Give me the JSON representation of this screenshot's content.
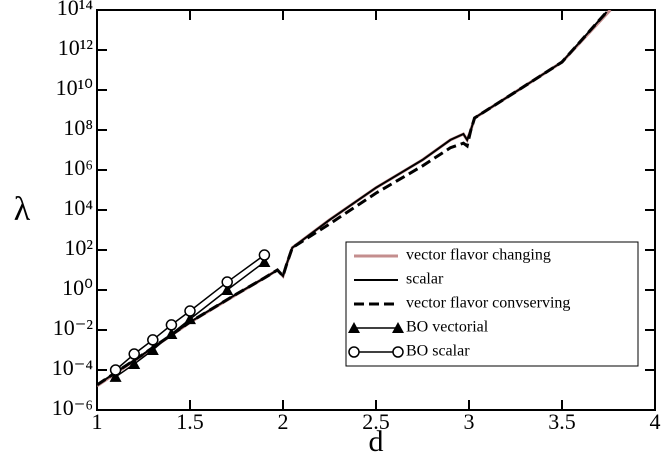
{
  "chart_data": {
    "type": "line",
    "x_label": "d",
    "y_label": "λ",
    "xlim": [
      1,
      4
    ],
    "xticks": [
      1,
      1.5,
      2,
      2.5,
      3,
      3.5,
      4
    ],
    "ylim": [
      1e-06,
      100000000000000.0
    ],
    "log_y": true,
    "yticks": [
      {
        "value": 1e-06,
        "label": "10⁻⁶"
      },
      {
        "value": 0.0001,
        "label": "10⁻⁴"
      },
      {
        "value": 0.01,
        "label": "10⁻²"
      },
      {
        "value": 1,
        "label": "10⁰"
      },
      {
        "value": 100,
        "label": "10²"
      },
      {
        "value": 10000,
        "label": "10⁴"
      },
      {
        "value": 1000000.0,
        "label": "10⁶"
      },
      {
        "value": 100000000.0,
        "label": "10⁸"
      },
      {
        "value": 10000000000.0,
        "label": "10¹⁰"
      },
      {
        "value": 1000000000000.0,
        "label": "10¹²"
      },
      {
        "value": 100000000000000.0,
        "label": "10¹⁴"
      }
    ],
    "legend": "lower right",
    "series": [
      {
        "name": "vector flavor changing",
        "color": "#c48e8e",
        "width": 3,
        "dash": false,
        "marker": null,
        "x": [
          1,
          1.25,
          1.5,
          1.75,
          1.9,
          1.97,
          2.0,
          2.02,
          2.05,
          2.25,
          2.5,
          2.75,
          2.9,
          2.97,
          2.99,
          3.01,
          3.03,
          3.25,
          3.5,
          3.76
        ],
        "values": [
          1.6e-05,
          0.0006,
          0.024,
          0.6,
          4,
          10,
          5,
          20,
          130,
          3200,
          130000.0,
          3200000.0,
          32000000.0,
          63000000.0,
          32000000.0,
          100000000.0,
          400000000.0,
          8000000000.0,
          250000000000.0,
          100000000000000.0
        ]
      },
      {
        "name": "scalar",
        "color": "#000000",
        "width": 2,
        "dash": false,
        "marker": null,
        "x": [
          1,
          1.25,
          1.5,
          1.75,
          1.9,
          1.97,
          2.0,
          2.02,
          2.05,
          2.25,
          2.5,
          2.75,
          2.9,
          2.97,
          2.99,
          3.01,
          3.03,
          3.25,
          3.5,
          3.74
        ],
        "values": [
          1.8e-05,
          0.00063,
          0.025,
          0.63,
          4,
          10,
          5,
          20,
          130,
          3200,
          130000.0,
          3200000.0,
          32000000.0,
          63000000.0,
          32000000.0,
          100000000.0,
          400000000.0,
          8000000000.0,
          250000000000.0,
          80000000000000.0
        ]
      },
      {
        "name": "vector flavor convserving",
        "color": "#000000",
        "width": 3,
        "dash": true,
        "marker": null,
        "x": [
          1,
          1.25,
          1.5,
          1.75,
          1.9,
          1.97,
          2.0,
          2.02,
          2.05,
          2.25,
          2.5,
          2.75,
          2.9,
          2.97,
          2.99,
          3.01,
          3.03,
          3.25,
          3.5,
          3.74
        ],
        "values": [
          1.8e-05,
          0.00063,
          0.025,
          0.63,
          4,
          10,
          5,
          20,
          130,
          2000,
          70000.0,
          1600000.0,
          13000000.0,
          22000000.0,
          16000000.0,
          100000000.0,
          400000000.0,
          8000000000.0,
          250000000000.0,
          80000000000000.0
        ]
      },
      {
        "name": "BO vectorial",
        "color": "#000000",
        "width": 1.5,
        "dash": false,
        "marker": "triangle",
        "x": [
          1.1,
          1.2,
          1.3,
          1.4,
          1.5,
          1.7,
          1.9
        ],
        "values": [
          4.5e-05,
          0.0002,
          0.001,
          0.0063,
          0.035,
          1,
          25
        ]
      },
      {
        "name": "BO scalar",
        "color": "#000000",
        "width": 1.5,
        "dash": false,
        "marker": "circle",
        "x": [
          1.1,
          1.2,
          1.3,
          1.4,
          1.5,
          1.7,
          1.9
        ],
        "values": [
          0.0001,
          0.00063,
          0.0032,
          0.018,
          0.089,
          2.5,
          56
        ]
      }
    ]
  }
}
